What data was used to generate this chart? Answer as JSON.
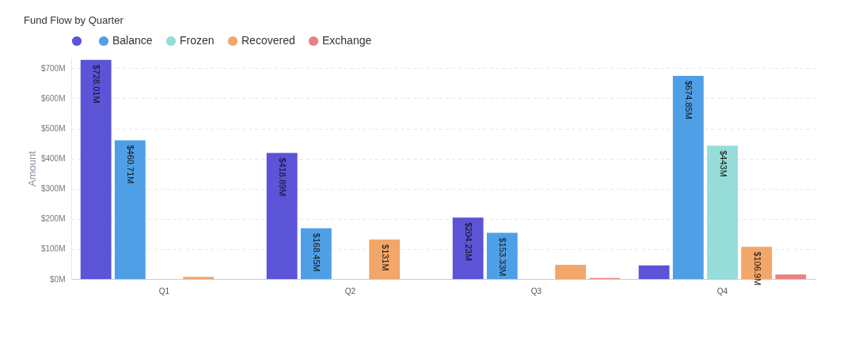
{
  "chart_data": {
    "type": "bar",
    "title": "Fund Flow by Quarter",
    "ylabel": "Amount",
    "categories": [
      "Q1",
      "Q2",
      "Q3",
      "Q4"
    ],
    "series": [
      {
        "color": "#5b54d6",
        "values": [
          728.01,
          418.89,
          204.23,
          45
        ],
        "value_labels": [
          "$728.01M",
          "$418.89M",
          "$204.23M",
          null
        ]
      },
      {
        "name": "Balance",
        "color": "#4f9fe6",
        "values": [
          460.71,
          168.45,
          153.33,
          674.85
        ],
        "value_labels": [
          "$460.71M",
          "$168.45M",
          "$153.33M",
          "$674.85M"
        ]
      },
      {
        "name": "Frozen",
        "color": "#96dcd8",
        "values": [
          null,
          null,
          null,
          443
        ],
        "value_labels": [
          null,
          null,
          null,
          "$443M"
        ]
      },
      {
        "name": "Recovered",
        "color": "#f3a66a",
        "values": [
          7,
          131,
          47,
          106.9
        ],
        "value_labels": [
          null,
          "$131M",
          null,
          "$106.9M"
        ]
      },
      {
        "name": "Exchange",
        "color": "#eb8080",
        "values": [
          null,
          null,
          3,
          15
        ],
        "value_labels": [
          null,
          null,
          null,
          null
        ]
      }
    ],
    "ylim": [
      0,
      735
    ],
    "yticks": [
      {
        "value": 0,
        "label": "$0M"
      },
      {
        "value": 100,
        "label": "$100M"
      },
      {
        "value": 200,
        "label": "$200M"
      },
      {
        "value": 300,
        "label": "$300M"
      },
      {
        "value": 400,
        "label": "$400M"
      },
      {
        "value": 500,
        "label": "$500M"
      },
      {
        "value": 600,
        "label": "$600M"
      },
      {
        "value": 700,
        "label": "$700M"
      }
    ],
    "grid": "y",
    "legend": "top left"
  }
}
